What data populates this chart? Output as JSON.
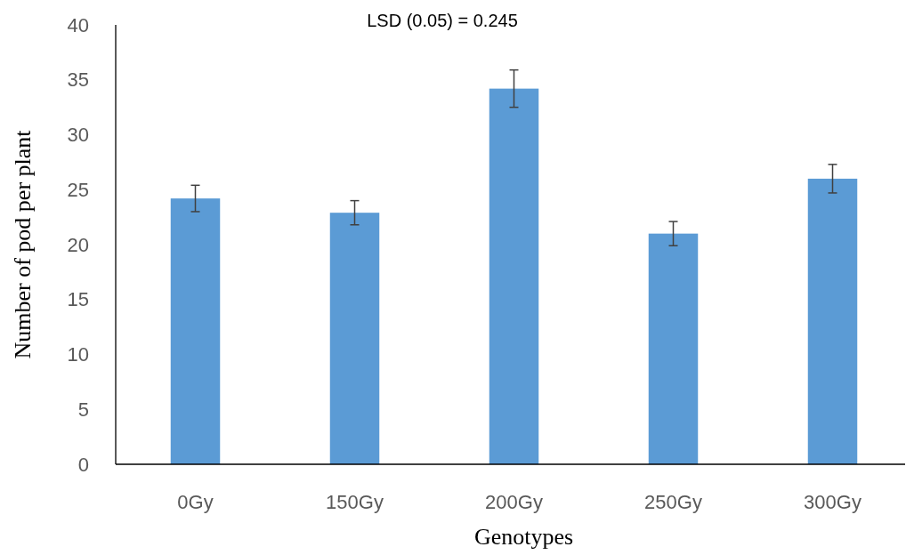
{
  "chart_data": {
    "type": "bar",
    "xlabel": "Genotypes",
    "ylabel": "Number of pod per plant",
    "annotations": [
      "LSD (0.05) = 0.245"
    ],
    "categories": [
      "0Gy",
      "150Gy",
      "200Gy",
      "250Gy",
      "300Gy"
    ],
    "values": [
      24.2,
      22.9,
      34.2,
      21.0,
      26.0
    ],
    "errors": [
      1.2,
      1.1,
      1.7,
      1.1,
      1.3
    ],
    "color": "#5b9bd5",
    "ylim": [
      0,
      40
    ],
    "yticks": [
      0,
      5,
      10,
      15,
      20,
      25,
      30,
      35,
      40
    ],
    "grid": false
  }
}
